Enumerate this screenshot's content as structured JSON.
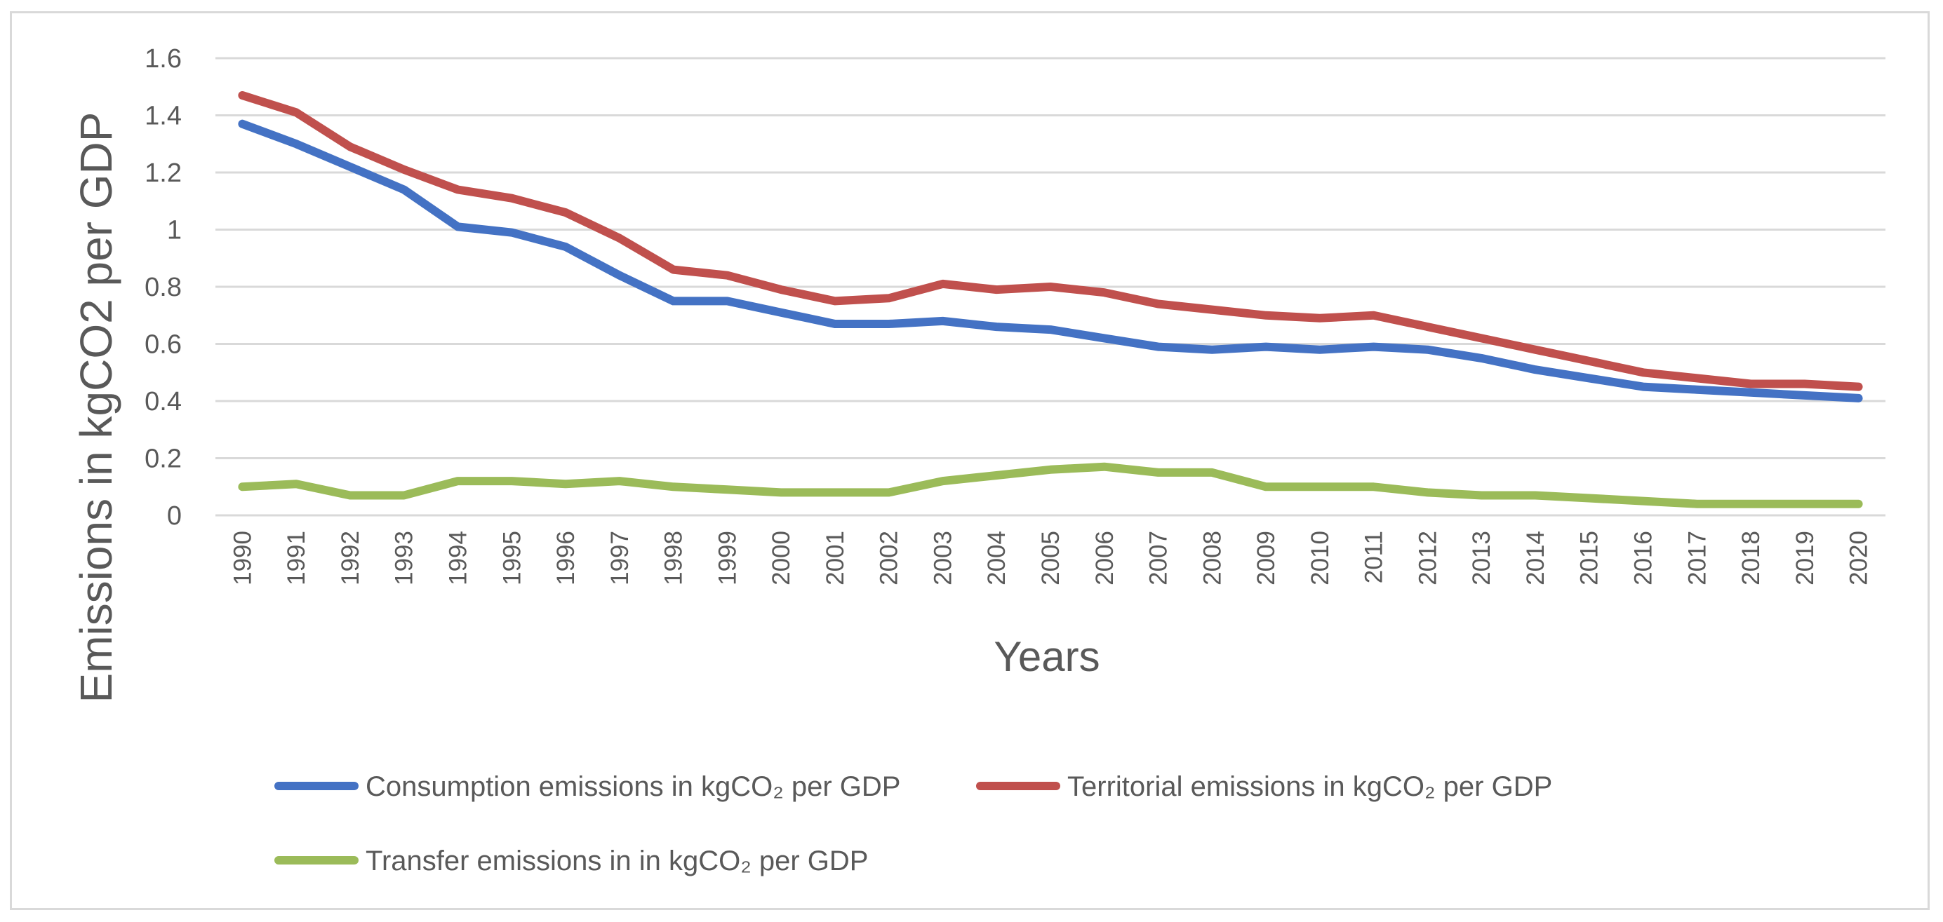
{
  "chart_data": {
    "type": "line",
    "title": "",
    "xlabel": "Years",
    "ylabel": "Emissions in kgCO2 per GDP",
    "ylim": [
      0,
      1.6
    ],
    "yticks": [
      "0",
      "0.2",
      "0.4",
      "0.6",
      "0.8",
      "1",
      "1.2",
      "1.4",
      "1.6"
    ],
    "grid": true,
    "legend_position": "bottom",
    "categories": [
      "1990",
      "1991",
      "1992",
      "1993",
      "1994",
      "1995",
      "1996",
      "1997",
      "1998",
      "1999",
      "2000",
      "2001",
      "2002",
      "2003",
      "2004",
      "2005",
      "2006",
      "2007",
      "2008",
      "2009",
      "2010",
      "2011",
      "2012",
      "2013",
      "2014",
      "2015",
      "2016",
      "2017",
      "2018",
      "2019",
      "2020"
    ],
    "series": [
      {
        "name": "Consumption emissions in kgCO₂ per GDP",
        "color": "#4472c4",
        "values": [
          1.37,
          1.3,
          1.22,
          1.14,
          1.01,
          0.99,
          0.94,
          0.84,
          0.75,
          0.75,
          0.71,
          0.67,
          0.67,
          0.68,
          0.66,
          0.65,
          0.62,
          0.59,
          0.58,
          0.59,
          0.58,
          0.59,
          0.58,
          0.55,
          0.51,
          0.48,
          0.45,
          0.44,
          0.43,
          0.42,
          0.41
        ]
      },
      {
        "name": "Territorial emissions in kgCO₂ per GDP",
        "color": "#c0504d",
        "values": [
          1.47,
          1.41,
          1.29,
          1.21,
          1.14,
          1.11,
          1.06,
          0.97,
          0.86,
          0.84,
          0.79,
          0.75,
          0.76,
          0.81,
          0.79,
          0.8,
          0.78,
          0.74,
          0.72,
          0.7,
          0.69,
          0.7,
          0.66,
          0.62,
          0.58,
          0.54,
          0.5,
          0.48,
          0.46,
          0.46,
          0.45
        ]
      },
      {
        "name": "Transfer emissions in in kgCO₂ per GDP",
        "color": "#9bbb59",
        "values": [
          0.1,
          0.11,
          0.07,
          0.07,
          0.12,
          0.12,
          0.11,
          0.12,
          0.1,
          0.09,
          0.08,
          0.08,
          0.08,
          0.12,
          0.14,
          0.16,
          0.17,
          0.15,
          0.15,
          0.1,
          0.1,
          0.1,
          0.08,
          0.07,
          0.07,
          0.06,
          0.05,
          0.04,
          0.04,
          0.04,
          0.04
        ]
      }
    ]
  }
}
